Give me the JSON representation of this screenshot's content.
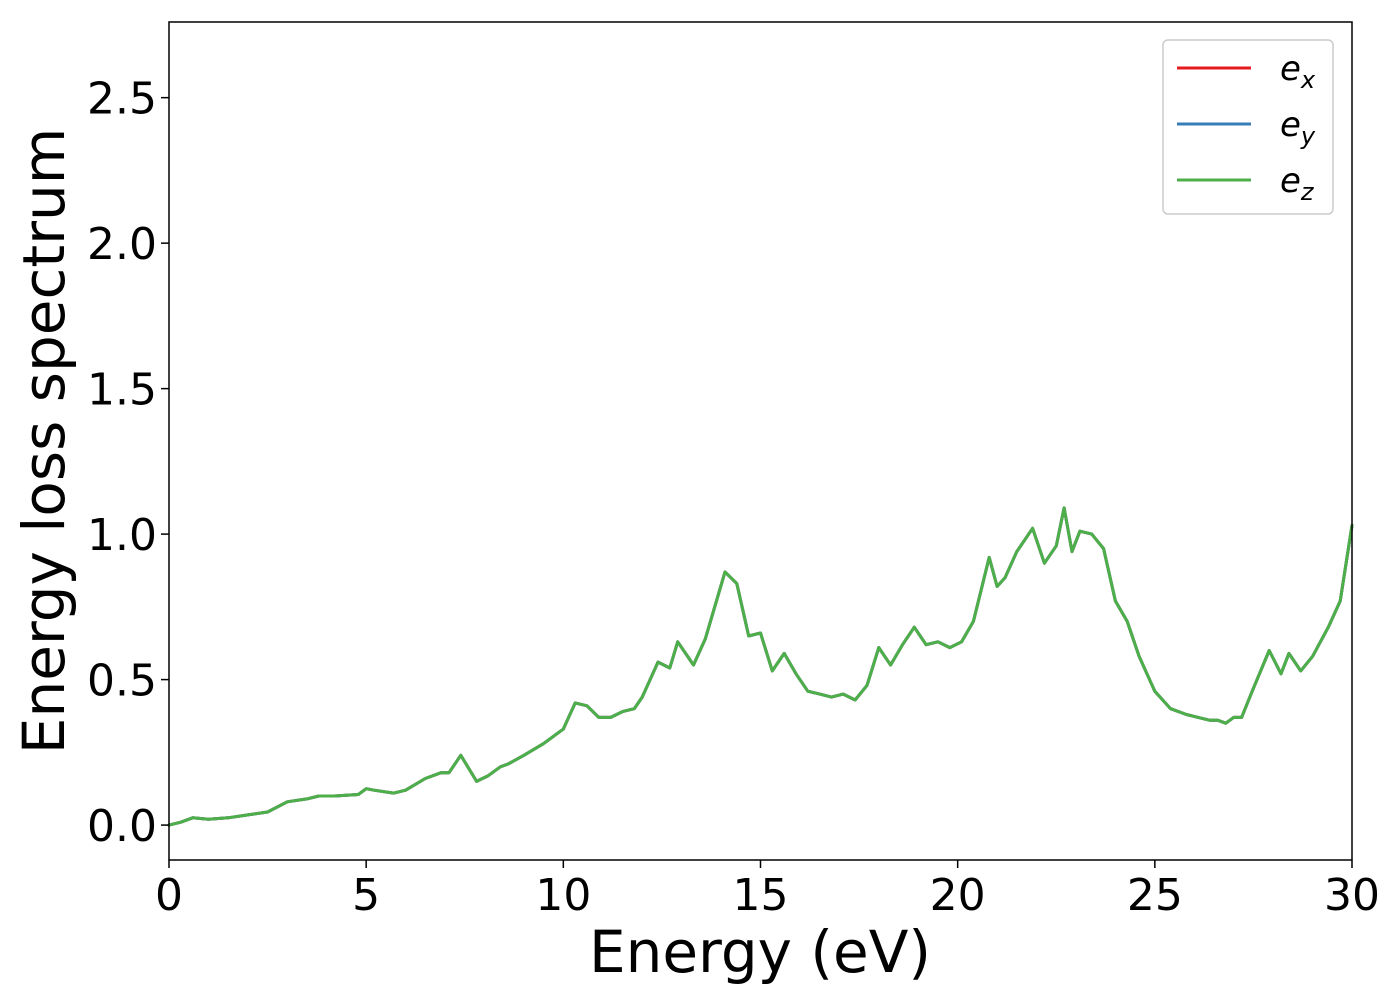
{
  "chart_data": {
    "type": "line",
    "xlabel": "Energy (eV)",
    "ylabel": "Energy loss spectrum",
    "xlim": [
      0,
      30
    ],
    "ylim": [
      -0.12,
      2.76
    ],
    "xticks": [
      0,
      5,
      10,
      15,
      20,
      25,
      30
    ],
    "yticks": [
      0.0,
      0.5,
      1.0,
      1.5,
      2.0,
      2.5
    ],
    "xtick_labels": [
      "0",
      "5",
      "10",
      "15",
      "20",
      "25",
      "30"
    ],
    "ytick_labels": [
      "0.0",
      "0.5",
      "1.0",
      "1.5",
      "2.0",
      "2.5"
    ],
    "grid": false,
    "legend_position": "top-right",
    "series": [
      {
        "name": "e_x",
        "label_main": "e",
        "label_sub": "x",
        "color": "#e41a1c"
      },
      {
        "name": "e_y",
        "label_main": "e",
        "label_sub": "y",
        "color": "#377eb8"
      },
      {
        "name": "e_z",
        "label_main": "e",
        "label_sub": "z",
        "color": "#4daf4a"
      }
    ],
    "x": [
      0,
      0.3,
      0.6,
      1.0,
      1.5,
      2.0,
      2.5,
      3.0,
      3.5,
      3.8,
      4.2,
      4.8,
      5.0,
      5.2,
      5.7,
      6.0,
      6.5,
      6.9,
      7.1,
      7.4,
      7.8,
      8.1,
      8.4,
      8.6,
      9.0,
      9.5,
      10.0,
      10.3,
      10.6,
      10.9,
      11.2,
      11.5,
      11.8,
      12.0,
      12.4,
      12.7,
      12.9,
      13.3,
      13.6,
      14.1,
      14.4,
      14.7,
      15.0,
      15.3,
      15.6,
      15.9,
      16.2,
      16.5,
      16.8,
      17.1,
      17.4,
      17.7,
      18.0,
      18.3,
      18.6,
      18.9,
      19.2,
      19.5,
      19.8,
      20.1,
      20.4,
      20.8,
      21.0,
      21.2,
      21.5,
      21.9,
      22.2,
      22.5,
      22.7,
      22.9,
      23.1,
      23.4,
      23.7,
      24.0,
      24.3,
      24.6,
      25.0,
      25.4,
      25.8,
      26.1,
      26.4,
      26.6,
      26.8,
      27.0,
      27.2,
      27.5,
      27.9,
      28.2,
      28.4,
      28.7,
      29.0,
      29.4,
      29.7,
      30.0
    ],
    "values": [
      0.0,
      0.01,
      0.025,
      0.02,
      0.025,
      0.035,
      0.045,
      0.08,
      0.09,
      0.1,
      0.1,
      0.105,
      0.125,
      0.12,
      0.11,
      0.12,
      0.16,
      0.18,
      0.18,
      0.24,
      0.15,
      0.17,
      0.2,
      0.21,
      0.24,
      0.28,
      0.33,
      0.42,
      0.41,
      0.37,
      0.37,
      0.39,
      0.4,
      0.44,
      0.56,
      0.54,
      0.63,
      0.55,
      0.64,
      0.87,
      0.83,
      0.65,
      0.66,
      0.53,
      0.59,
      0.52,
      0.46,
      0.45,
      0.44,
      0.45,
      0.43,
      0.48,
      0.61,
      0.55,
      0.62,
      0.68,
      0.62,
      0.63,
      0.61,
      0.63,
      0.7,
      0.92,
      0.82,
      0.85,
      0.94,
      1.02,
      0.9,
      0.96,
      1.09,
      0.94,
      1.01,
      1.0,
      0.95,
      0.77,
      0.7,
      0.58,
      0.46,
      0.4,
      0.38,
      0.37,
      0.36,
      0.36,
      0.35,
      0.37,
      0.37,
      0.47,
      0.6,
      0.52,
      0.59,
      0.53,
      0.58,
      0.68,
      0.77,
      1.03
    ]
  }
}
